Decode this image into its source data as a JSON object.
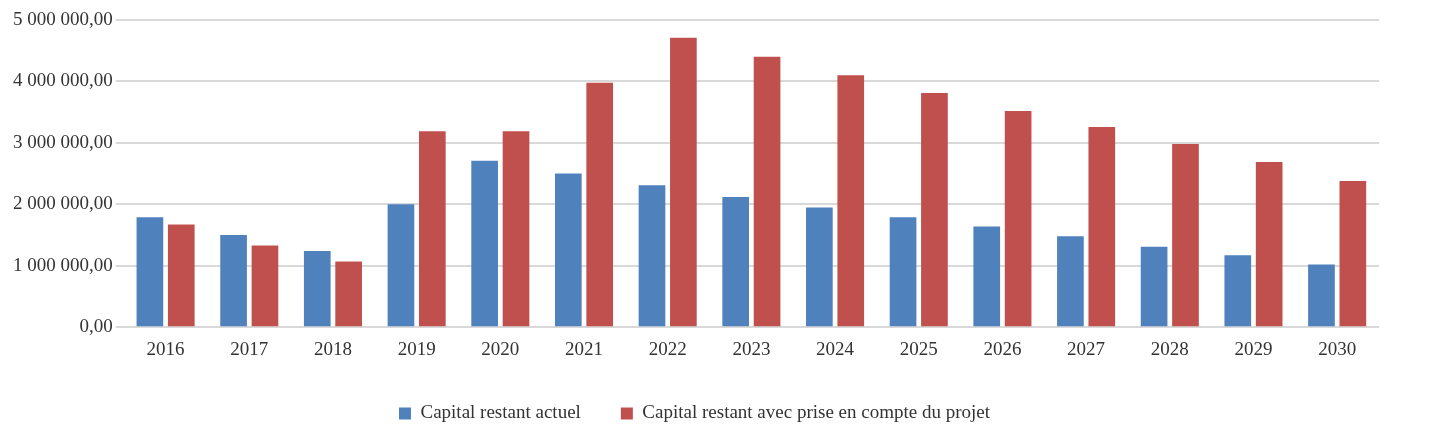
{
  "chart_data": {
    "type": "bar",
    "categories": [
      "2016",
      "2017",
      "2018",
      "2019",
      "2020",
      "2021",
      "2022",
      "2023",
      "2024",
      "2025",
      "2026",
      "2027",
      "2028",
      "2029",
      "2030"
    ],
    "series": [
      {
        "name": "Capital restant actuel",
        "color": "#4f81bd",
        "values": [
          1790000,
          1500000,
          1240000,
          2000000,
          2710000,
          2500000,
          2310000,
          2120000,
          1950000,
          1790000,
          1640000,
          1480000,
          1310000,
          1170000,
          1020000
        ]
      },
      {
        "name": "Capital restant avec prise en compte du projet",
        "color": "#c0504d",
        "values": [
          1670000,
          1330000,
          1070000,
          3190000,
          3190000,
          3980000,
          4710000,
          4400000,
          4100000,
          3810000,
          3520000,
          3260000,
          2980000,
          2690000,
          2380000
        ]
      }
    ],
    "ylim": [
      0,
      5000000
    ],
    "yticks": [
      {
        "value": 0,
        "label": "0,00"
      },
      {
        "value": 1000000,
        "label": "1 000 000,00"
      },
      {
        "value": 2000000,
        "label": "2 000 000,00"
      },
      {
        "value": 3000000,
        "label": "3 000 000,00"
      },
      {
        "value": 4000000,
        "label": "4 000 000,00"
      },
      {
        "value": 5000000,
        "label": "5 000 000,00"
      }
    ],
    "grid": "y",
    "legend": "bottom"
  }
}
